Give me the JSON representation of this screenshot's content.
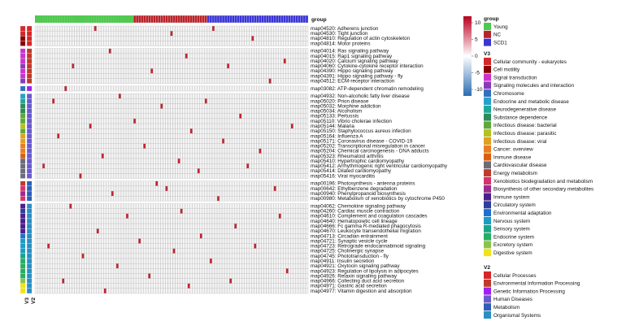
{
  "chart_data": {
    "type": "heatmap",
    "column_annotation": {
      "title": "group",
      "levels": [
        {
          "name": "Young",
          "color": "#4fc94f",
          "n": 40
        },
        {
          "name": "NC",
          "color": "#b8242a",
          "n": 30
        },
        {
          "name": "SCD1",
          "color": "#3a35d4",
          "n": 41
        }
      ]
    },
    "row_annotation_labels": [
      "V3",
      "V2"
    ],
    "color_scale": {
      "ticks": [
        "10",
        "5",
        "0",
        "-5",
        "-10"
      ],
      "high_color": "#b8001f",
      "mid_color": "#ffffff",
      "low_color": "#2b6cb0"
    },
    "background_cell_color": "#f4f4f4",
    "highlight_color": "#c2262e",
    "blocks": [
      {
        "v2": "Cellular Processes",
        "rows": [
          {
            "label": "map04520: Adherens junction",
            "v3": "Cellular community - eukaryotes",
            "hits": [
              24,
              72
            ]
          },
          {
            "label": "map04530: Tight junction",
            "v3": "Cellular community - eukaryotes",
            "hits": [
              55
            ]
          },
          {
            "label": "map04810: Regulation of actin cytoskeleton",
            "v3": "Cell motility",
            "hits": [
              88
            ]
          },
          {
            "label": "map04814: Motor proteins",
            "v3": "Cell motility",
            "hits": []
          }
        ]
      },
      {
        "v2": "Environmental Information Processing",
        "rows": [
          {
            "label": "map04014: Ras signaling pathway",
            "v3": "Signal transduction",
            "hits": [
              30
            ]
          },
          {
            "label": "map04015: Rap1 signaling pathway",
            "v3": "Signal transduction",
            "hits": [
              61
            ]
          },
          {
            "label": "map04020: Calcium signaling pathway",
            "v3": "Signal transduction",
            "hits": [
              101
            ]
          },
          {
            "label": "map04060: Cytokine-cytokine receptor interaction",
            "v3": "Signaling molecules and interaction",
            "hits": [
              15,
              78
            ]
          },
          {
            "label": "map04390: Hippo signaling pathway",
            "v3": "Signal transduction",
            "hits": [
              47
            ]
          },
          {
            "label": "map04391: Hippo signaling pathway - fly",
            "v3": "Signal transduction",
            "hits": []
          },
          {
            "label": "map04512: ECM-receptor interaction",
            "v3": "Signaling molecules and interaction",
            "hits": [
              95
            ]
          }
        ]
      },
      {
        "v2": "Genetic Information Processing",
        "rows": [
          {
            "label": "map03082: ATP-dependent chromatin remodeling",
            "v3": "Chromosome",
            "hits": [
              12
            ]
          }
        ]
      },
      {
        "v2": "Human Diseases",
        "rows": [
          {
            "label": "map04932: Non-alcoholic fatty liver disease",
            "v3": "Endocrine and metabolic disease",
            "hits": [
              34
            ]
          },
          {
            "label": "map05020: Prion disease",
            "v3": "Neurodegenerative disease",
            "hits": [
              7,
              69
            ]
          },
          {
            "label": "map05032: Morphine addiction",
            "v3": "Substance dependence",
            "hits": [
              51
            ]
          },
          {
            "label": "map05034: Alcoholism",
            "v3": "Substance dependence",
            "hits": []
          },
          {
            "label": "map05133: Pertussis",
            "v3": "Infectious disease: bacterial",
            "hits": [
              83
            ]
          },
          {
            "label": "map05110: Vibrio cholerae infection",
            "v3": "Infectious disease: bacterial",
            "hits": [
              40
            ]
          },
          {
            "label": "map05144: Malaria",
            "v3": "Infectious disease: parasitic",
            "hits": [
              22,
              104
            ]
          },
          {
            "label": "map05150: Staphylococcus aureus infection",
            "v3": "Infectious disease: bacterial",
            "hits": [
              63
            ]
          },
          {
            "label": "map05164: Influenza A",
            "v3": "Infectious disease: viral",
            "hits": [
              9
            ]
          },
          {
            "label": "map05171: Coronavirus disease - COVID-19",
            "v3": "Infectious disease: viral",
            "hits": [
              76
            ]
          },
          {
            "label": "map05202: Transcriptional misregulation in cancer",
            "v3": "Cancer: overview",
            "hits": [
              44
            ]
          },
          {
            "label": "map05204: Chemical carcinogenesis - DNA adducts",
            "v3": "Cancer: overview",
            "hits": [
              91
            ]
          },
          {
            "label": "map05323: Rheumatoid arthritis",
            "v3": "Immune disease",
            "hits": [
              27
            ]
          },
          {
            "label": "map05410: Hypertrophic cardiomyopathy",
            "v3": "Cardiovascular disease",
            "hits": [
              58
            ]
          },
          {
            "label": "map05412: Arrhythmogenic right ventricular cardiomyopathy",
            "v3": "Cardiovascular disease",
            "hits": [
              3,
              86
            ]
          },
          {
            "label": "map05414: Dilated cardiomyopathy",
            "v3": "Cardiovascular disease",
            "hits": [
              66
            ]
          },
          {
            "label": "map05416: Viral myocarditis",
            "v3": "Cardiovascular disease",
            "hits": [
              18
            ]
          }
        ]
      },
      {
        "v2": "Metabolism",
        "rows": [
          {
            "label": "map00196: Photosynthesis - antenna proteins",
            "v3": "Energy metabolism",
            "hits": [
              49
            ]
          },
          {
            "label": "map00642: Ethylbenzene degradation",
            "v3": "Xenobiotics biodegradation and metabolism",
            "hits": [
              53,
              97
            ]
          },
          {
            "label": "map00940: Phenylpropanoid biosynthesis",
            "v3": "Biosynthesis of other secondary metabolites",
            "hits": [
              31
            ]
          },
          {
            "label": "map00980: Metabolism of xenobiotics by cytochrome P450",
            "v3": "Xenobiotics biodegradation and metabolism",
            "hits": [
              74
            ]
          }
        ]
      },
      {
        "v2": "Organismal Systems",
        "rows": [
          {
            "label": "map04062: Chemokine signaling pathway",
            "v3": "Immune system",
            "hits": [
              14
            ]
          },
          {
            "label": "map04260: Cardiac muscle contraction",
            "v3": "Circulatory system",
            "hits": [
              59
            ]
          },
          {
            "label": "map04610: Complement and coagulation cascades",
            "v3": "Immune system",
            "hits": [
              37,
              99
            ]
          },
          {
            "label": "map04640: Hematopoietic cell lineage",
            "v3": "Immune system",
            "hits": []
          },
          {
            "label": "map04666: Fc gamma R-mediated phagocytosis",
            "v3": "Immune system",
            "hits": [
              81
            ]
          },
          {
            "label": "map04670: Leukocyte transendothelial migration",
            "v3": "Immune system",
            "hits": [
              25
            ]
          },
          {
            "label": "map04713: Circadian entrainment",
            "v3": "Environmental adaptation",
            "hits": [
              67
            ]
          },
          {
            "label": "map04721: Synaptic vesicle cycle",
            "v3": "Nervous system",
            "hits": [
              42
            ]
          },
          {
            "label": "map04723: Retrograde endocannabinoid signaling",
            "v3": "Nervous system",
            "hits": [
              5,
              89
            ]
          },
          {
            "label": "map04725: Cholinergic synapse",
            "v3": "Nervous system",
            "hits": [
              56
            ]
          },
          {
            "label": "map04745: Phototransduction - fly",
            "v3": "Sensory system",
            "hits": [
              19
            ]
          },
          {
            "label": "map04911: Insulin secretion",
            "v3": "Endocrine system",
            "hits": [
              71
            ]
          },
          {
            "label": "map04921: Oxytocin signaling pathway",
            "v3": "Endocrine system",
            "hits": [
              33
            ]
          },
          {
            "label": "map04923: Regulation of lipolysis in adipocytes",
            "v3": "Endocrine system",
            "hits": [
              102
            ]
          },
          {
            "label": "map04926: Relaxin signaling pathway",
            "v3": "Endocrine system",
            "hits": [
              46
            ]
          },
          {
            "label": "map04966: Collecting duct acid secretion",
            "v3": "Excretory system",
            "hits": [
              11,
              79
            ]
          },
          {
            "label": "map04971: Gastric acid secretion",
            "v3": "Digestive system",
            "hits": [
              62
            ]
          },
          {
            "label": "map04977: Vitamin digestion and absorption",
            "v3": "Digestive system",
            "hits": [
              28
            ]
          }
        ]
      }
    ],
    "legend_scale_title": "",
    "legend_group": {
      "title": "group",
      "items": [
        {
          "label": "Young",
          "color": "#4fc94f"
        },
        {
          "label": "NC",
          "color": "#b8242a"
        },
        {
          "label": "SCD1",
          "color": "#3a35d4"
        }
      ]
    },
    "legend_v3": {
      "title": "V3",
      "items": [
        {
          "label": "Cellular community - eukaryotes",
          "color": "#d62728"
        },
        {
          "label": "Cell motility",
          "color": "#8b0000"
        },
        {
          "label": "Signal transduction",
          "color": "#cc33cc"
        },
        {
          "label": "Signaling molecules and interaction",
          "color": "#8a3ab9"
        },
        {
          "label": "Chromosome",
          "color": "#2f6fbf"
        },
        {
          "label": "Endocrine and metabolic disease",
          "color": "#2aa0c8"
        },
        {
          "label": "Neurodegenerative disease",
          "color": "#1fa89a"
        },
        {
          "label": "Substance dependence",
          "color": "#2e8b57"
        },
        {
          "label": "Infectious disease: bacterial",
          "color": "#5fa83a"
        },
        {
          "label": "Infectious disease: parasitic",
          "color": "#b3c21e"
        },
        {
          "label": "Infectious disease: viral",
          "color": "#e0a020"
        },
        {
          "label": "Cancer: overview",
          "color": "#e67e22"
        },
        {
          "label": "Immune disease",
          "color": "#d95f0e"
        },
        {
          "label": "Cardiovascular disease",
          "color": "#6b6b7a"
        },
        {
          "label": "Energy metabolism",
          "color": "#c0392b"
        },
        {
          "label": "Xenobiotics biodegradation and metabolism",
          "color": "#d6336c"
        },
        {
          "label": "Biosynthesis of other secondary metabolites",
          "color": "#9b2c8f"
        },
        {
          "label": "Immune system",
          "color": "#4b1f8a"
        },
        {
          "label": "Circulatory system",
          "color": "#2c3e9e"
        },
        {
          "label": "Environmental adaptation",
          "color": "#1f6fd0"
        },
        {
          "label": "Nervous system",
          "color": "#1b9cc4"
        },
        {
          "label": "Sensory system",
          "color": "#17a589"
        },
        {
          "label": "Endocrine system",
          "color": "#27ae60"
        },
        {
          "label": "Excretory system",
          "color": "#8bc34a"
        },
        {
          "label": "Digestive system",
          "color": "#f1e21a"
        }
      ]
    },
    "legend_v2": {
      "title": "V2",
      "items": [
        {
          "label": "Cellular Processes",
          "color": "#d62728"
        },
        {
          "label": "Environmental Information Processing",
          "color": "#c0392b"
        },
        {
          "label": "Genetic Information Processing",
          "color": "#a020f0"
        },
        {
          "label": "Human Diseases",
          "color": "#6a5acd"
        },
        {
          "label": "Metabolism",
          "color": "#2c5fb8"
        },
        {
          "label": "Organismal Systems",
          "color": "#2a8fc4"
        }
      ]
    }
  }
}
